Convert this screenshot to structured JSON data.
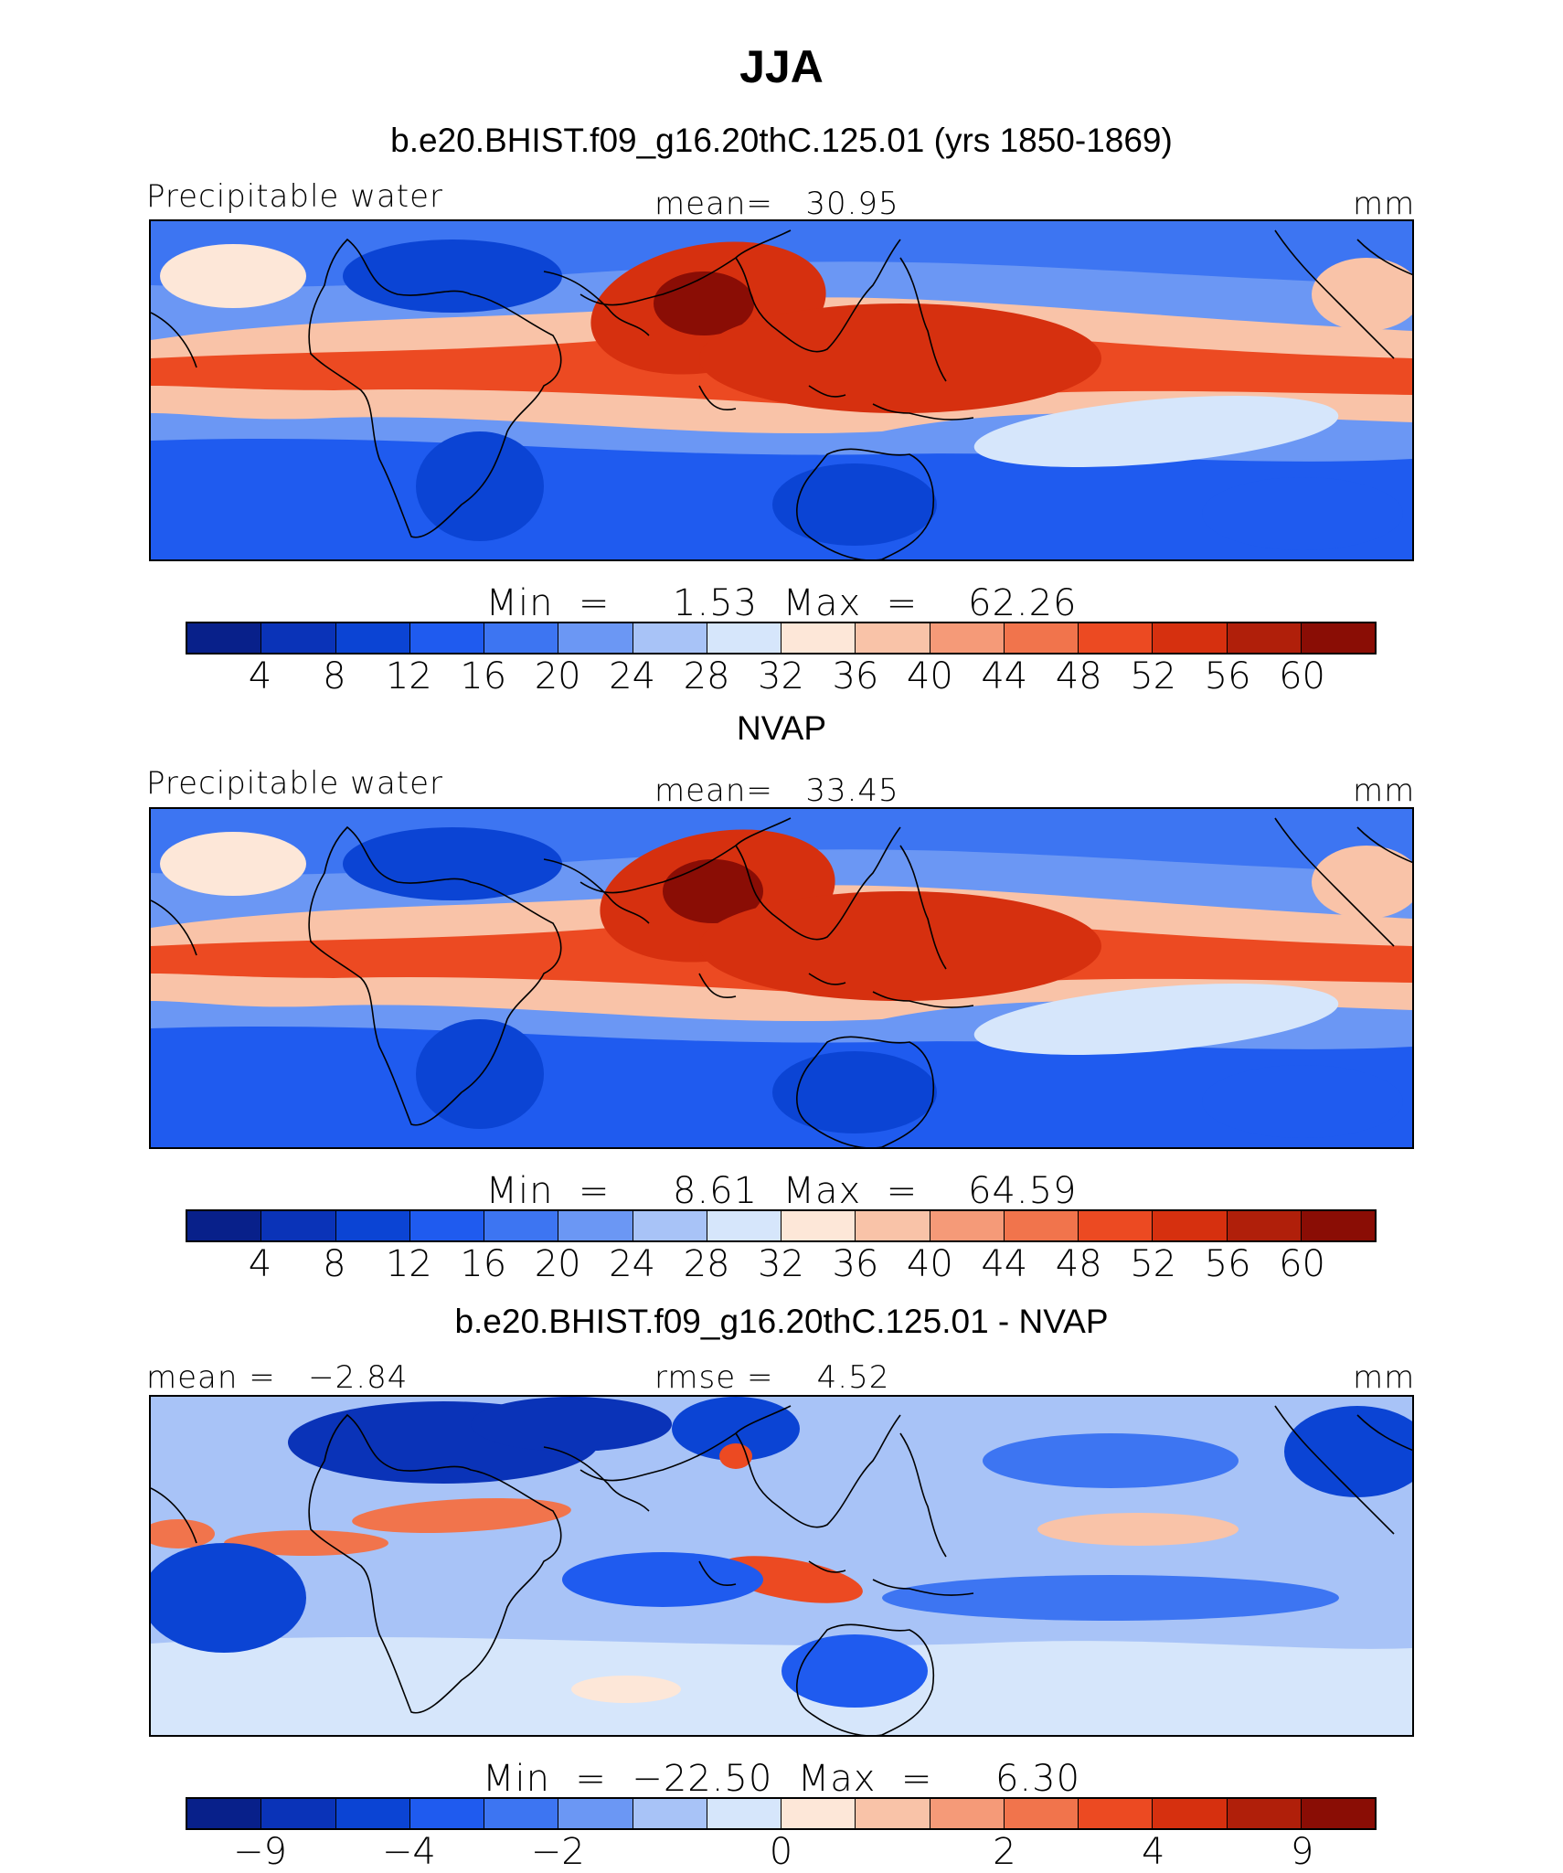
{
  "title": "JJA",
  "palette": [
    "#08208a",
    "#0a33b8",
    "#0b44d4",
    "#1f5bef",
    "#3d75f2",
    "#6b97f4",
    "#a8c3f7",
    "#d6e6fb",
    "#fde7d8",
    "#f9c3a8",
    "#f59a78",
    "#f1744c",
    "#ec4a22",
    "#d6300f",
    "#b01f0a",
    "#8a0d05"
  ],
  "panels": [
    {
      "subtitle": "b.e20.BHIST.f09_g16.20thC.125.01 (yrs 1850-1869)",
      "left_label": "Precipitable water",
      "center_label": "mean=   30.95",
      "right_label": "mm",
      "minmax": "Min  =     1.53  Max  =    62.26",
      "ticks": [
        "4",
        "8",
        "12",
        "16",
        "20",
        "24",
        "28",
        "32",
        "36",
        "40",
        "44",
        "48",
        "52",
        "56",
        "60"
      ]
    },
    {
      "subtitle": "NVAP",
      "left_label": "Precipitable water",
      "center_label": "mean=   33.45",
      "right_label": "mm",
      "minmax": "Min  =     8.61  Max  =    64.59",
      "ticks": [
        "4",
        "8",
        "12",
        "16",
        "20",
        "24",
        "28",
        "32",
        "36",
        "40",
        "44",
        "48",
        "52",
        "56",
        "60"
      ]
    },
    {
      "subtitle": "b.e20.BHIST.f09_g16.20thC.125.01 - NVAP",
      "left_label": "mean =   −2.84",
      "center_label": "rmse =    4.52",
      "right_label": "mm",
      "minmax": "Min  =  −22.50  Max  =     6.30",
      "ticks": [
        "−9",
        "−4",
        "−2",
        "0",
        "2",
        "4",
        "9"
      ]
    }
  ],
  "chart_data": [
    {
      "type": "heatmap",
      "title": "JJA",
      "subtitle": "b.e20.BHIST.f09_g16.20thC.125.01 (yrs 1850-1869)",
      "variable": "Precipitable water",
      "units": "mm",
      "mean": 30.95,
      "min": 1.53,
      "max": 62.26,
      "contour_levels": [
        4,
        8,
        12,
        16,
        20,
        24,
        28,
        32,
        36,
        40,
        44,
        48,
        52,
        56,
        60
      ]
    },
    {
      "type": "heatmap",
      "subtitle": "NVAP",
      "variable": "Precipitable water",
      "units": "mm",
      "mean": 33.45,
      "min": 8.61,
      "max": 64.59,
      "contour_levels": [
        4,
        8,
        12,
        16,
        20,
        24,
        28,
        32,
        36,
        40,
        44,
        48,
        52,
        56,
        60
      ]
    },
    {
      "type": "heatmap",
      "subtitle": "b.e20.BHIST.f09_g16.20thC.125.01 - NVAP",
      "units": "mm",
      "mean": -2.84,
      "rmse": 4.52,
      "min": -22.5,
      "max": 6.3,
      "contour_levels": [
        -9,
        -4,
        -2,
        0,
        2,
        4,
        9
      ]
    }
  ]
}
